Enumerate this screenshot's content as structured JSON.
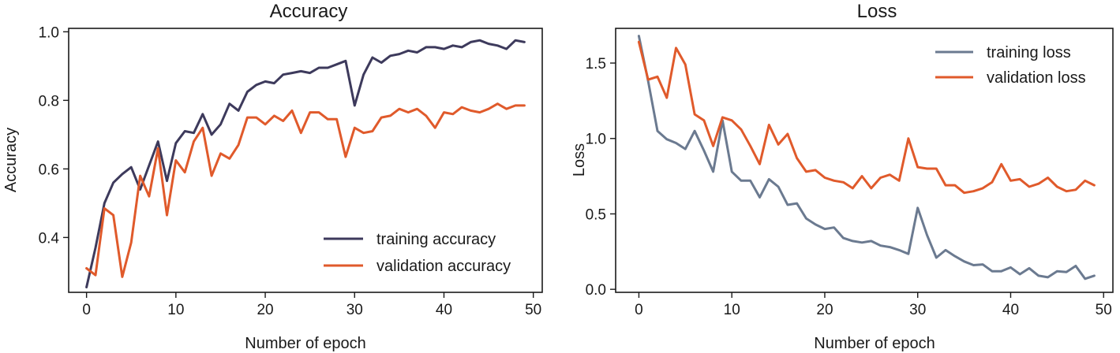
{
  "chart_data": [
    {
      "type": "line",
      "title": "Accuracy",
      "xlabel": "Number of epoch",
      "ylabel": "Accuracy",
      "xlim": [
        -2,
        51
      ],
      "ylim": [
        0.24,
        1.01
      ],
      "xticks": [
        0,
        10,
        20,
        30,
        40,
        50
      ],
      "yticks": [
        0.4,
        0.6,
        0.8,
        1.0
      ],
      "xtick_labels": [
        "0",
        "10",
        "20",
        "30",
        "40",
        "50"
      ],
      "ytick_labels": [
        "0.4",
        "0.6",
        "0.8",
        "1.0"
      ],
      "legend_position": "lower-right",
      "grid": false,
      "series": [
        {
          "name": "training accuracy",
          "color": "#3d3a5c",
          "x": [
            0,
            1,
            2,
            3,
            4,
            5,
            6,
            7,
            8,
            9,
            10,
            11,
            12,
            13,
            14,
            15,
            16,
            17,
            18,
            19,
            20,
            21,
            22,
            23,
            24,
            25,
            26,
            27,
            28,
            29,
            30,
            31,
            32,
            33,
            34,
            35,
            36,
            37,
            38,
            39,
            40,
            41,
            42,
            43,
            44,
            45,
            46,
            47,
            48,
            49
          ],
          "y": [
            0.255,
            0.37,
            0.5,
            0.56,
            0.585,
            0.605,
            0.54,
            0.61,
            0.68,
            0.565,
            0.675,
            0.71,
            0.705,
            0.76,
            0.7,
            0.73,
            0.79,
            0.77,
            0.825,
            0.845,
            0.855,
            0.85,
            0.875,
            0.88,
            0.885,
            0.88,
            0.895,
            0.895,
            0.905,
            0.915,
            0.785,
            0.875,
            0.925,
            0.91,
            0.93,
            0.935,
            0.945,
            0.94,
            0.955,
            0.955,
            0.95,
            0.96,
            0.955,
            0.97,
            0.975,
            0.965,
            0.96,
            0.95,
            0.975,
            0.97
          ]
        },
        {
          "name": "validation accuracy",
          "color": "#e05a2b",
          "x": [
            0,
            1,
            2,
            3,
            4,
            5,
            6,
            7,
            8,
            9,
            10,
            11,
            12,
            13,
            14,
            15,
            16,
            17,
            18,
            19,
            20,
            21,
            22,
            23,
            24,
            25,
            26,
            27,
            28,
            29,
            30,
            31,
            32,
            33,
            34,
            35,
            36,
            37,
            38,
            39,
            40,
            41,
            42,
            43,
            44,
            45,
            46,
            47,
            48,
            49
          ],
          "y": [
            0.31,
            0.29,
            0.485,
            0.465,
            0.285,
            0.385,
            0.58,
            0.52,
            0.66,
            0.465,
            0.625,
            0.59,
            0.68,
            0.72,
            0.58,
            0.645,
            0.63,
            0.67,
            0.75,
            0.75,
            0.73,
            0.755,
            0.74,
            0.77,
            0.705,
            0.765,
            0.765,
            0.745,
            0.745,
            0.635,
            0.72,
            0.705,
            0.71,
            0.75,
            0.755,
            0.775,
            0.765,
            0.775,
            0.755,
            0.72,
            0.765,
            0.76,
            0.78,
            0.77,
            0.765,
            0.775,
            0.79,
            0.775,
            0.785,
            0.785
          ]
        }
      ]
    },
    {
      "type": "line",
      "title": "Loss",
      "xlabel": "Number of epoch",
      "ylabel": "Loss",
      "xlim": [
        -2.5,
        51
      ],
      "ylim": [
        -0.02,
        1.73
      ],
      "xticks": [
        0,
        10,
        20,
        30,
        40,
        50
      ],
      "yticks": [
        0.0,
        0.5,
        1.0,
        1.5
      ],
      "xtick_labels": [
        "0",
        "10",
        "20",
        "30",
        "40",
        "50"
      ],
      "ytick_labels": [
        "0.0",
        "0.5",
        "1.0",
        "1.5"
      ],
      "legend_position": "top-right",
      "grid": false,
      "series": [
        {
          "name": "training loss",
          "color": "#6b7a90",
          "x": [
            0,
            1,
            2,
            3,
            4,
            5,
            6,
            7,
            8,
            9,
            10,
            11,
            12,
            13,
            14,
            15,
            16,
            17,
            18,
            19,
            20,
            21,
            22,
            23,
            24,
            25,
            26,
            27,
            28,
            29,
            30,
            31,
            32,
            33,
            34,
            35,
            36,
            37,
            38,
            39,
            40,
            41,
            42,
            43,
            44,
            45,
            46,
            47,
            48,
            49
          ],
          "y": [
            1.68,
            1.38,
            1.05,
            0.995,
            0.97,
            0.93,
            1.05,
            0.92,
            0.78,
            1.12,
            0.78,
            0.72,
            0.72,
            0.61,
            0.73,
            0.68,
            0.56,
            0.57,
            0.47,
            0.43,
            0.4,
            0.41,
            0.34,
            0.32,
            0.31,
            0.32,
            0.29,
            0.28,
            0.26,
            0.235,
            0.54,
            0.36,
            0.21,
            0.26,
            0.22,
            0.185,
            0.16,
            0.165,
            0.12,
            0.12,
            0.145,
            0.1,
            0.14,
            0.09,
            0.08,
            0.12,
            0.115,
            0.155,
            0.07,
            0.09
          ]
        },
        {
          "name": "validation loss",
          "color": "#e05a2b",
          "x": [
            0,
            1,
            2,
            3,
            4,
            5,
            6,
            7,
            8,
            9,
            10,
            11,
            12,
            13,
            14,
            15,
            16,
            17,
            18,
            19,
            20,
            21,
            22,
            23,
            24,
            25,
            26,
            27,
            28,
            29,
            30,
            31,
            32,
            33,
            34,
            35,
            36,
            37,
            38,
            39,
            40,
            41,
            42,
            43,
            44,
            45,
            46,
            47,
            48,
            49
          ],
          "y": [
            1.64,
            1.39,
            1.41,
            1.27,
            1.6,
            1.49,
            1.16,
            1.12,
            0.95,
            1.14,
            1.12,
            1.06,
            0.95,
            0.83,
            1.09,
            0.96,
            1.03,
            0.87,
            0.78,
            0.79,
            0.74,
            0.72,
            0.71,
            0.67,
            0.75,
            0.67,
            0.74,
            0.76,
            0.72,
            1.0,
            0.81,
            0.8,
            0.8,
            0.69,
            0.69,
            0.64,
            0.65,
            0.67,
            0.71,
            0.83,
            0.72,
            0.73,
            0.68,
            0.7,
            0.74,
            0.68,
            0.65,
            0.66,
            0.72,
            0.69
          ]
        }
      ]
    }
  ]
}
